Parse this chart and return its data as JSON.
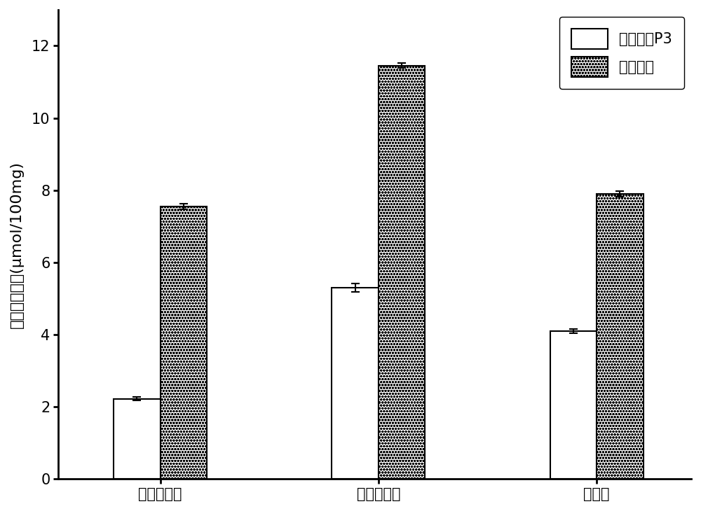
{
  "categories": [
    "牛磺胆酸鉡",
    "甘氨胆酸鉡",
    "胆酸鉡"
  ],
  "p3_values": [
    2.22,
    5.3,
    4.1
  ],
  "p3_errors": [
    0.05,
    0.12,
    0.06
  ],
  "kl_values": [
    7.55,
    11.45,
    7.9
  ],
  "kl_errors": [
    0.07,
    0.07,
    0.07
  ],
  "ylabel": "胆酸盐结合量(μmol/100mg)",
  "ylim": [
    0,
    13
  ],
  "yticks": [
    0,
    2,
    4,
    6,
    8,
    10,
    12
  ],
  "legend_labels": [
    "纯化多糖P3",
    "考来烯胺"
  ],
  "bar_width": 0.32,
  "x_positions": [
    1.0,
    2.5,
    4.0
  ],
  "p3_color": "#ffffff",
  "p3_edgecolor": "#000000",
  "kl_edgecolor": "#000000",
  "kl_hatch": "oooo",
  "background_color": "#ffffff",
  "label_fontsize": 16,
  "tick_fontsize": 15,
  "legend_fontsize": 15,
  "spine_linewidth": 2.0,
  "bar_linewidth": 1.5
}
